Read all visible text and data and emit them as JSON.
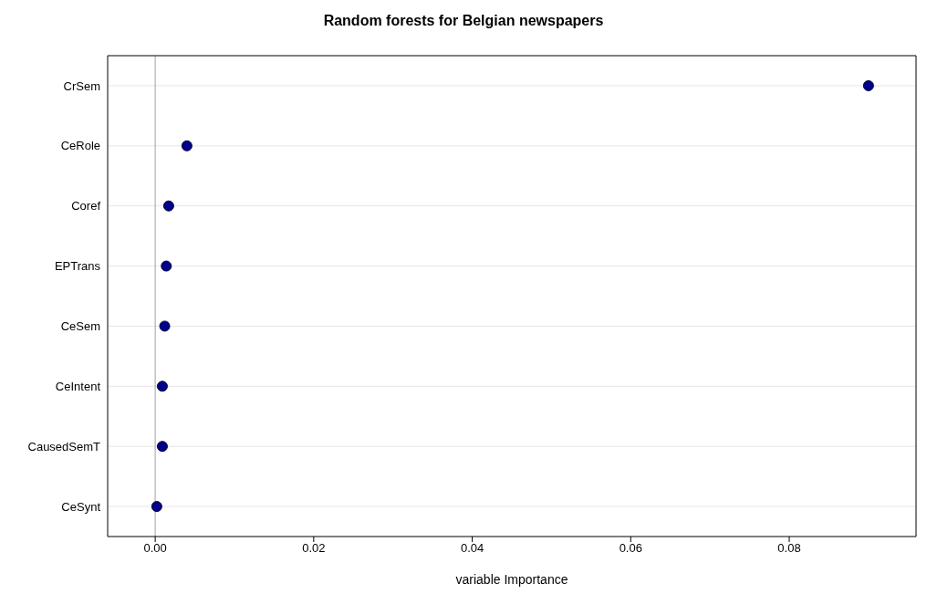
{
  "chart_data": {
    "type": "scatter",
    "orientation": "horizontal",
    "title": "Random forests for Belgian newspapers",
    "xlabel": "variable Importance",
    "categories": [
      "CrSem",
      "CeRole",
      "Coref",
      "EPTrans",
      "CeSem",
      "CeIntent",
      "CausedSemT",
      "CeSynt"
    ],
    "series": [
      {
        "color": "#00008b",
        "values": [
          0.09,
          0.004,
          0.0017,
          0.0014,
          0.0012,
          0.0009,
          0.0009,
          0.0002
        ]
      }
    ],
    "xlim": [
      -0.006,
      0.096
    ],
    "xticks": [
      {
        "value": 0,
        "label": "0.00"
      },
      {
        "value": 0.02,
        "label": "0.02"
      },
      {
        "value": 0.04,
        "label": "0.04"
      },
      {
        "value": 0.06,
        "label": "0.06"
      },
      {
        "value": 0.08,
        "label": "0.08"
      }
    ],
    "ref_lines": [
      {
        "axis": "x",
        "value": 0,
        "color": "#a0a0a0"
      }
    ],
    "grid": "y",
    "marker": "circle",
    "legend": false
  }
}
